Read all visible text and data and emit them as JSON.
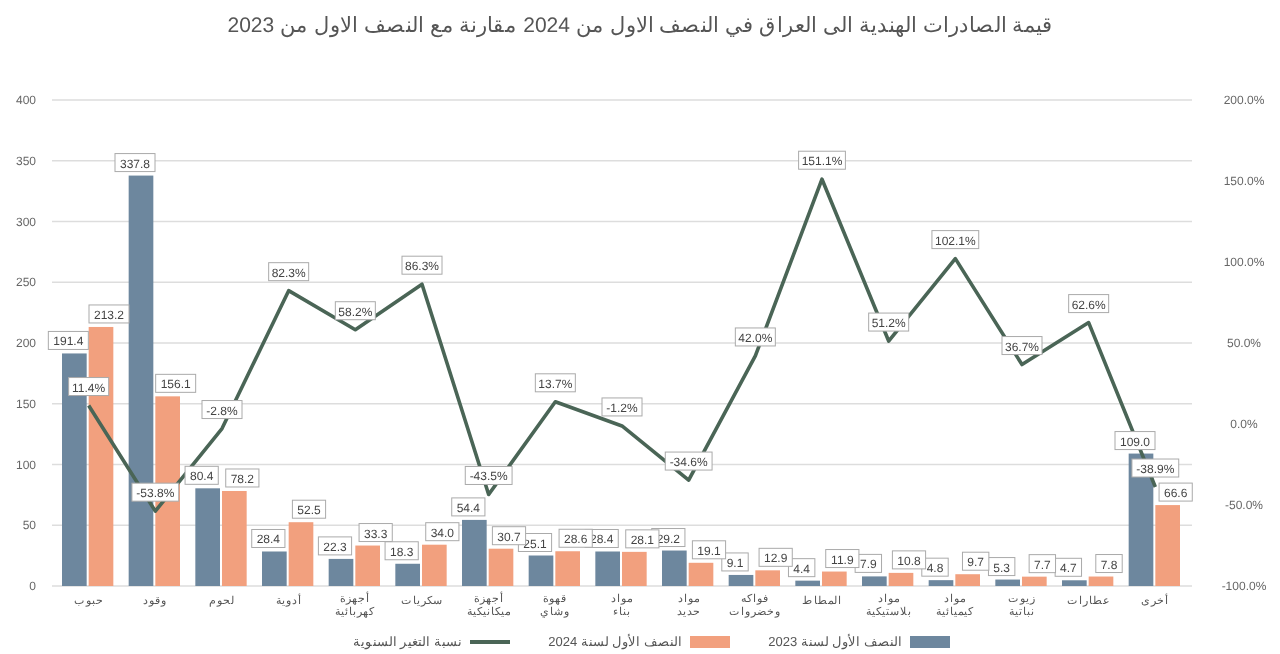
{
  "chart_data": {
    "type": "bar",
    "title": "قيمة الصادرات الهندية الى العراق في النصف الاول من 2024 مقارنة مع النصف الاول من 2023",
    "categories": [
      "حبوب",
      "وقود",
      "لحوم",
      "أدوية",
      "أجهزة كهربائية",
      "سكريات",
      "أجهزة ميكانيكية",
      "قهوة وشاي",
      "مواد بناء",
      "مواد حديد",
      "فواكه وخضروات",
      "المطاط",
      "مواد بلاستيكية",
      "مواد كيميائية",
      "زيوت نباتية",
      "عطارات",
      "أخرى"
    ],
    "series": [
      {
        "name": "النصف الأول لسنة 2023",
        "color": "#6d879e",
        "values": [
          191.4,
          337.8,
          80.4,
          28.4,
          22.3,
          18.3,
          54.4,
          25.1,
          28.4,
          29.2,
          9.1,
          4.4,
          7.9,
          4.8,
          5.3,
          4.7,
          109.0
        ],
        "value_labels": [
          "191.4",
          "337.8",
          "80.4",
          "28.4",
          "22.3",
          "18.3",
          "54.4",
          "25.1",
          "28.4",
          "29.2",
          "9.1",
          "4.4",
          "7.9",
          "4.8",
          "5.3",
          "4.7",
          "109.0"
        ]
      },
      {
        "name": "النصف الأول لسنة 2024",
        "color": "#f2a07e",
        "values": [
          213.2,
          156.1,
          78.2,
          52.5,
          33.3,
          34.0,
          30.7,
          28.6,
          28.1,
          19.1,
          12.9,
          11.9,
          10.8,
          9.7,
          7.7,
          7.8,
          66.6
        ],
        "value_labels": [
          "213.2",
          "156.1",
          "78.2",
          "52.5",
          "33.3",
          "34.0",
          "30.7",
          "28.6",
          "28.1",
          "19.1",
          "12.9",
          "11.9",
          "10.8",
          "9.7",
          "7.7",
          "7.8",
          "66.6"
        ]
      },
      {
        "name": "نسبة التغير السنوية",
        "type": "line",
        "axis": "y2",
        "color": "#4a6556",
        "values": [
          11.4,
          -53.8,
          -2.8,
          82.3,
          58.2,
          86.3,
          -43.5,
          13.7,
          -1.2,
          -34.6,
          42.0,
          151.1,
          51.2,
          102.1,
          36.7,
          62.6,
          -38.9
        ],
        "value_labels": [
          "11.4%",
          "-53.8%",
          "-2.8%",
          "82.3%",
          "58.2%",
          "86.3%",
          "-43.5%",
          "13.7%",
          "-1.2%",
          "-34.6%",
          "42.0%",
          "151.1%",
          "51.2%",
          "102.1%",
          "36.7%",
          "62.6%",
          "-38.9%"
        ]
      }
    ],
    "ylim": [
      0,
      400
    ],
    "yticks": [
      0,
      50,
      100,
      150,
      200,
      250,
      300,
      350,
      400
    ],
    "y2lim": [
      -100,
      200
    ],
    "y2ticks": [
      {
        "value": -100,
        "label": "-100.0%"
      },
      {
        "value": -50,
        "label": "-50.0%"
      },
      {
        "value": 0,
        "label": "0.0%"
      },
      {
        "value": 50,
        "label": "50.0%"
      },
      {
        "value": 100,
        "label": "100.0%"
      },
      {
        "value": 150,
        "label": "150.0%"
      },
      {
        "value": 200,
        "label": "200.0%"
      }
    ],
    "grid": "y",
    "legend": "bottom",
    "marker": "none",
    "line_style": "solid"
  }
}
